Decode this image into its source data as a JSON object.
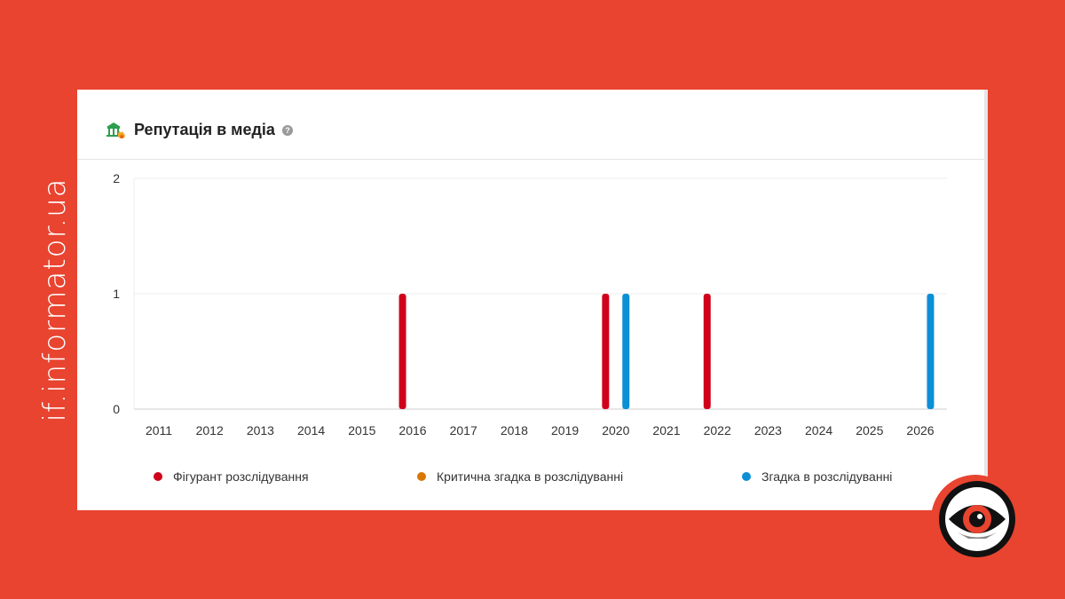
{
  "brand": {
    "site": "if.informator.ua"
  },
  "card": {
    "title": "Репутація в медіа",
    "help_glyph": "?"
  },
  "icons": {
    "header": "bank-fire-icon",
    "help": "help-icon",
    "logo": "eye-logo-icon"
  },
  "colors": {
    "page_bg": "#e84430",
    "red": "#d0021b",
    "orange": "#d97706",
    "blue": "#0b8fd6"
  },
  "chart_data": {
    "type": "bar",
    "x_categories": [
      "2011",
      "2012",
      "2013",
      "2014",
      "2015",
      "2016",
      "2017",
      "2018",
      "2019",
      "2020",
      "2021",
      "2022",
      "2023",
      "2024",
      "2025",
      "2026"
    ],
    "ylim": [
      0,
      2
    ],
    "yticks": [
      0,
      1,
      2
    ],
    "grid": true,
    "legend_position": "bottom",
    "series": [
      {
        "name": "Фігурант розслідування",
        "color": "#d0021b",
        "points": [
          {
            "x": 2015.8,
            "y": 1
          },
          {
            "x": 2019.8,
            "y": 1
          },
          {
            "x": 2021.8,
            "y": 1
          }
        ]
      },
      {
        "name": "Критична згадка в розслідуванні",
        "color": "#d97706",
        "points": []
      },
      {
        "name": "Згадка в розслідуванні",
        "color": "#0b8fd6",
        "points": [
          {
            "x": 2020.2,
            "y": 1
          },
          {
            "x": 2026.2,
            "y": 1
          }
        ]
      }
    ]
  }
}
